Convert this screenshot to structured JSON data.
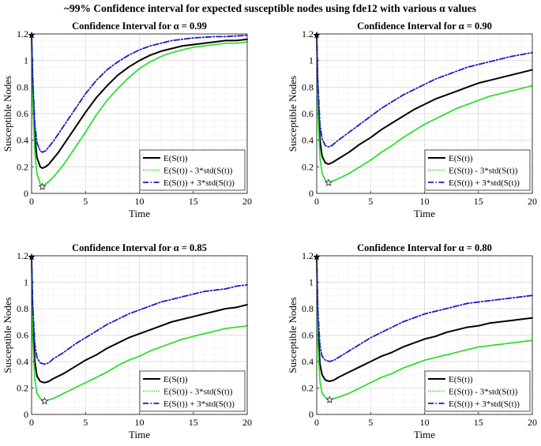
{
  "figure": {
    "suptitle": "~99% Confidence interval for expected susceptible nodes using fde12 with various α values",
    "colors": {
      "mean": "#000000",
      "lower": "#22dd22",
      "upper": "#1a1acc",
      "grid": "#e6e6e6",
      "axis": "#262626"
    }
  },
  "chart_data": [
    {
      "type": "line",
      "title": "Confidence Interval for α = 0.99",
      "xlabel": "Time",
      "ylabel": "Susceptible Nodes",
      "xlim": [
        0,
        20
      ],
      "ylim": [
        0,
        1.2
      ],
      "xticks": [
        "0",
        "5",
        "10",
        "15",
        "20"
      ],
      "yticks": [
        "0",
        "0.2",
        "0.4",
        "0.6",
        "0.8",
        "1",
        "1.2"
      ],
      "grid": true,
      "legend_position": "bottom-right",
      "start_marker": {
        "x": 0,
        "y": 1.19
      },
      "min_marker": {
        "x": 1.0,
        "y": 0.05
      },
      "x": [
        0,
        0.1,
        0.3,
        0.5,
        0.8,
        1,
        1.3,
        1.6,
        2,
        2.5,
        3,
        4,
        5,
        6,
        7,
        8,
        9,
        10,
        11,
        12,
        13,
        14,
        15,
        16,
        17,
        18,
        19,
        20
      ],
      "series": [
        {
          "name": "E(S(t))",
          "style": "solid",
          "values": [
            1.19,
            0.8,
            0.42,
            0.27,
            0.2,
            0.19,
            0.2,
            0.22,
            0.26,
            0.31,
            0.37,
            0.49,
            0.61,
            0.72,
            0.81,
            0.89,
            0.95,
            1.0,
            1.04,
            1.07,
            1.09,
            1.11,
            1.12,
            1.13,
            1.14,
            1.15,
            1.15,
            1.16
          ]
        },
        {
          "name": "E(S(t)) - 3*std(S(t))",
          "style": "dotted",
          "values": [
            1.19,
            0.7,
            0.3,
            0.15,
            0.07,
            0.05,
            0.07,
            0.09,
            0.12,
            0.17,
            0.22,
            0.34,
            0.46,
            0.59,
            0.7,
            0.79,
            0.87,
            0.94,
            0.99,
            1.03,
            1.06,
            1.08,
            1.1,
            1.11,
            1.12,
            1.13,
            1.13,
            1.14
          ]
        },
        {
          "name": "E(S(t)) + 3*std(S(t))",
          "style": "dashdot",
          "values": [
            1.19,
            0.88,
            0.52,
            0.38,
            0.32,
            0.31,
            0.32,
            0.35,
            0.39,
            0.45,
            0.51,
            0.63,
            0.75,
            0.85,
            0.93,
            0.99,
            1.04,
            1.08,
            1.11,
            1.13,
            1.15,
            1.16,
            1.17,
            1.175,
            1.18,
            1.18,
            1.185,
            1.19
          ]
        }
      ]
    },
    {
      "type": "line",
      "title": "Confidence Interval for α = 0.90",
      "xlabel": "Time",
      "ylabel": "Susceptible Nodes",
      "xlim": [
        0,
        20
      ],
      "ylim": [
        0,
        1.2
      ],
      "xticks": [
        "0",
        "5",
        "10",
        "15",
        "20"
      ],
      "yticks": [
        "0",
        "0.2",
        "0.4",
        "0.6",
        "0.8",
        "1",
        "1.2"
      ],
      "grid": true,
      "legend_position": "bottom-right",
      "start_marker": {
        "x": 0,
        "y": 1.19
      },
      "min_marker": {
        "x": 1.1,
        "y": 0.08
      },
      "x": [
        0,
        0.1,
        0.3,
        0.5,
        0.8,
        1.1,
        1.4,
        2,
        3,
        4,
        5,
        6,
        7,
        8,
        9,
        10,
        11,
        12,
        13,
        14,
        15,
        16,
        17,
        18,
        19,
        20
      ],
      "series": [
        {
          "name": "E(S(t))",
          "style": "solid",
          "values": [
            1.19,
            0.75,
            0.4,
            0.28,
            0.23,
            0.22,
            0.23,
            0.26,
            0.31,
            0.37,
            0.42,
            0.48,
            0.53,
            0.58,
            0.63,
            0.67,
            0.71,
            0.74,
            0.77,
            0.8,
            0.83,
            0.85,
            0.87,
            0.89,
            0.91,
            0.93
          ]
        },
        {
          "name": "E(S(t)) - 3*std(S(t))",
          "style": "dotted",
          "values": [
            1.19,
            0.62,
            0.27,
            0.15,
            0.1,
            0.08,
            0.09,
            0.11,
            0.15,
            0.2,
            0.25,
            0.31,
            0.36,
            0.42,
            0.47,
            0.52,
            0.56,
            0.6,
            0.64,
            0.67,
            0.7,
            0.73,
            0.75,
            0.77,
            0.79,
            0.81
          ]
        },
        {
          "name": "E(S(t)) + 3*std(S(t))",
          "style": "dashdot",
          "values": [
            1.19,
            0.85,
            0.52,
            0.41,
            0.36,
            0.35,
            0.36,
            0.4,
            0.46,
            0.52,
            0.58,
            0.64,
            0.69,
            0.74,
            0.78,
            0.82,
            0.86,
            0.89,
            0.92,
            0.95,
            0.97,
            0.99,
            1.01,
            1.03,
            1.045,
            1.06
          ]
        }
      ]
    },
    {
      "type": "line",
      "title": "Confidence Interval for α = 0.85",
      "xlabel": "Time",
      "ylabel": "Susceptible Nodes",
      "xlim": [
        0,
        20
      ],
      "ylim": [
        0,
        1.2
      ],
      "xticks": [
        "0",
        "5",
        "10",
        "15",
        "20"
      ],
      "yticks": [
        "0",
        "0.2",
        "0.4",
        "0.6",
        "0.8",
        "1",
        "1.2"
      ],
      "grid": true,
      "legend_position": "bottom-right",
      "start_marker": {
        "x": 0,
        "y": 1.19
      },
      "min_marker": {
        "x": 1.2,
        "y": 0.1
      },
      "x": [
        0,
        0.1,
        0.3,
        0.5,
        0.8,
        1.2,
        1.6,
        2,
        3,
        4,
        5,
        6,
        7,
        8,
        9,
        10,
        11,
        12,
        13,
        14,
        15,
        16,
        17,
        18,
        19,
        20
      ],
      "series": [
        {
          "name": "E(S(t))",
          "style": "solid",
          "values": [
            1.19,
            0.72,
            0.4,
            0.29,
            0.25,
            0.24,
            0.25,
            0.27,
            0.31,
            0.36,
            0.41,
            0.45,
            0.5,
            0.54,
            0.58,
            0.61,
            0.64,
            0.67,
            0.7,
            0.72,
            0.74,
            0.76,
            0.78,
            0.8,
            0.81,
            0.83
          ]
        },
        {
          "name": "E(S(t)) - 3*std(S(t))",
          "style": "dotted",
          "values": [
            1.19,
            0.58,
            0.26,
            0.16,
            0.12,
            0.1,
            0.11,
            0.12,
            0.16,
            0.2,
            0.24,
            0.28,
            0.32,
            0.37,
            0.41,
            0.44,
            0.48,
            0.51,
            0.54,
            0.57,
            0.59,
            0.61,
            0.63,
            0.65,
            0.66,
            0.67
          ]
        },
        {
          "name": "E(S(t)) + 3*std(S(t))",
          "style": "dashdot",
          "values": [
            1.19,
            0.84,
            0.53,
            0.43,
            0.39,
            0.38,
            0.39,
            0.42,
            0.47,
            0.53,
            0.58,
            0.63,
            0.68,
            0.72,
            0.76,
            0.79,
            0.82,
            0.85,
            0.87,
            0.89,
            0.91,
            0.93,
            0.94,
            0.95,
            0.97,
            0.98
          ]
        }
      ]
    },
    {
      "type": "line",
      "title": "Confidence Interval for α = 0.80",
      "xlabel": "Time",
      "ylabel": "Susceptible Nodes",
      "xlim": [
        0,
        20
      ],
      "ylim": [
        0,
        1.2
      ],
      "xticks": [
        "0",
        "5",
        "10",
        "15",
        "20"
      ],
      "yticks": [
        "0",
        "0.2",
        "0.4",
        "0.6",
        "0.8",
        "1",
        "1.2"
      ],
      "grid": true,
      "legend_position": "bottom-right",
      "start_marker": {
        "x": 0,
        "y": 1.19
      },
      "min_marker": {
        "x": 1.2,
        "y": 0.11
      },
      "x": [
        0,
        0.1,
        0.3,
        0.5,
        0.8,
        1.2,
        1.6,
        2,
        3,
        4,
        5,
        6,
        7,
        8,
        9,
        10,
        11,
        12,
        13,
        14,
        15,
        16,
        17,
        18,
        19,
        20
      ],
      "series": [
        {
          "name": "E(S(t))",
          "style": "solid",
          "values": [
            1.19,
            0.68,
            0.38,
            0.3,
            0.26,
            0.25,
            0.26,
            0.28,
            0.32,
            0.36,
            0.4,
            0.44,
            0.47,
            0.51,
            0.54,
            0.57,
            0.59,
            0.62,
            0.64,
            0.66,
            0.67,
            0.69,
            0.7,
            0.71,
            0.72,
            0.73
          ]
        },
        {
          "name": "E(S(t)) - 3*std(S(t))",
          "style": "dotted",
          "values": [
            1.19,
            0.55,
            0.25,
            0.16,
            0.13,
            0.11,
            0.12,
            0.13,
            0.16,
            0.2,
            0.24,
            0.28,
            0.31,
            0.35,
            0.38,
            0.41,
            0.43,
            0.45,
            0.47,
            0.49,
            0.51,
            0.52,
            0.53,
            0.54,
            0.55,
            0.56
          ]
        },
        {
          "name": "E(S(t)) + 3*std(S(t))",
          "style": "dashdot",
          "values": [
            1.19,
            0.8,
            0.52,
            0.44,
            0.41,
            0.4,
            0.41,
            0.43,
            0.48,
            0.53,
            0.58,
            0.62,
            0.66,
            0.7,
            0.73,
            0.76,
            0.78,
            0.8,
            0.82,
            0.84,
            0.85,
            0.86,
            0.87,
            0.88,
            0.89,
            0.9
          ]
        }
      ]
    }
  ]
}
